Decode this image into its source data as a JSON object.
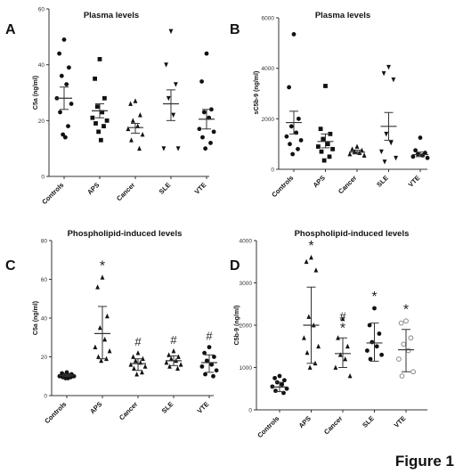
{
  "figure_label": "Figure 1",
  "chart_data": [
    {
      "type": "scatter",
      "panel": "A",
      "title": "Plasma levels",
      "ylabel": "C5a (ng/ml)",
      "xlabel": "",
      "ylim": [
        0,
        60
      ],
      "yticks": [
        "0",
        "20",
        "40",
        "60"
      ],
      "categories": [
        "Controls",
        "APS",
        "Cancer",
        "SLE",
        "VTE"
      ],
      "markers": [
        "circle",
        "square",
        "triangle",
        "triangle-down",
        "circle"
      ],
      "groups": [
        {
          "points": [
            49,
            44,
            39,
            36,
            33,
            28,
            26,
            23,
            18,
            15,
            14
          ],
          "mean": 28,
          "sem": [
            24,
            32
          ]
        },
        {
          "points": [
            42,
            35,
            28,
            25,
            23,
            21,
            20,
            19,
            18,
            16,
            13
          ],
          "mean": 23.5,
          "sem": [
            21,
            26
          ]
        },
        {
          "points": [
            27,
            26,
            22,
            20,
            18,
            17,
            15,
            13,
            10
          ],
          "mean": 17.5,
          "sem": [
            15.5,
            19
          ]
        },
        {
          "points": [
            52,
            40,
            33,
            28,
            22,
            10,
            10
          ],
          "mean": 26,
          "sem": [
            20,
            31
          ]
        },
        {
          "points": [
            44,
            34,
            24,
            23,
            21,
            17,
            16,
            14,
            12,
            10
          ],
          "mean": 20.5,
          "sem": [
            17,
            24
          ]
        }
      ],
      "annotations": [
        [
          "",
          "",
          "",
          "",
          ""
        ],
        [
          "",
          "",
          "",
          "",
          ""
        ]
      ]
    },
    {
      "type": "scatter",
      "panel": "B",
      "title": "Plasma levels",
      "ylabel": "sC5b-9 (ng/ml)",
      "xlabel": "",
      "ylim": [
        0,
        6000
      ],
      "yticks": [
        "0",
        "2000",
        "4000",
        "6000"
      ],
      "categories": [
        "Controls",
        "APS",
        "Cancer",
        "SLE",
        "VTE"
      ],
      "markers": [
        "circle",
        "square",
        "triangle",
        "triangle-down",
        "circle"
      ],
      "groups": [
        {
          "points": [
            5350,
            3250,
            2000,
            1700,
            1450,
            1300,
            1150,
            1000,
            800,
            600
          ],
          "mean": 1850,
          "sem": [
            1400,
            2300
          ]
        },
        {
          "points": [
            3300,
            1600,
            1400,
            1200,
            1000,
            900,
            800,
            700,
            500,
            350
          ],
          "mean": 1100,
          "sem": [
            850,
            1400
          ]
        },
        {
          "points": [
            900,
            800,
            750,
            700,
            650,
            600,
            550
          ],
          "mean": 680,
          "sem": [
            610,
            760
          ]
        },
        {
          "points": [
            4050,
            3800,
            3550,
            1400,
            1050,
            700,
            450,
            300
          ],
          "mean": 1700,
          "sem": [
            1150,
            2250
          ]
        },
        {
          "points": [
            1250,
            750,
            650,
            600,
            550,
            500,
            450
          ],
          "mean": 580,
          "sem": [
            500,
            680
          ]
        }
      ],
      "annotations": [
        [
          "",
          "",
          "",
          "",
          ""
        ],
        [
          "",
          "",
          "",
          "",
          ""
        ]
      ]
    },
    {
      "type": "scatter",
      "panel": "C",
      "title": "Phospholipid-induced levels",
      "ylabel": "C5a (ng/ml)",
      "xlabel": "",
      "ylim": [
        0,
        80
      ],
      "yticks": [
        "0",
        "20",
        "40",
        "60",
        "80"
      ],
      "categories": [
        "Controls",
        "APS",
        "Cancer",
        "SLE",
        "VTE"
      ],
      "markers": [
        "circle",
        "triangle",
        "triangle",
        "triangle",
        "circle"
      ],
      "groups": [
        {
          "points": [
            12,
            11.5,
            11,
            10.5,
            10.5,
            10,
            10,
            9.5,
            9.5,
            9,
            9
          ],
          "mean": 10.5,
          "sem": [
            9.8,
            11
          ]
        },
        {
          "points": [
            61,
            56,
            41,
            35,
            29,
            25,
            23,
            20,
            19,
            18
          ],
          "mean": 32,
          "sem": [
            19,
            46
          ]
        },
        {
          "points": [
            22,
            20,
            19,
            18,
            17,
            16,
            15,
            14,
            12,
            11
          ],
          "mean": 16.5,
          "sem": [
            13,
            19
          ]
        },
        {
          "points": [
            23,
            21,
            20,
            19,
            18,
            17,
            16,
            15,
            14
          ],
          "mean": 18,
          "sem": [
            15.5,
            20.5
          ]
        },
        {
          "points": [
            25,
            22,
            20,
            18,
            16,
            15,
            13,
            11,
            10
          ],
          "mean": 17,
          "sem": [
            12,
            21
          ]
        }
      ],
      "annotations": [
        [
          "",
          "*",
          "",
          "",
          ""
        ],
        [
          "",
          "",
          "#",
          "#",
          "#"
        ]
      ]
    },
    {
      "type": "scatter",
      "panel": "D",
      "title": "Phospholipid-induced  levels",
      "ylabel": "C5b-9 (ng/ml)",
      "xlabel": "",
      "ylim": [
        0,
        4000
      ],
      "yticks": [
        "0",
        "1000",
        "2000",
        "3000",
        "4000"
      ],
      "categories": [
        "Controls",
        "APS",
        "Cancer",
        "SLE",
        "VTE"
      ],
      "markers": [
        "circle",
        "triangle",
        "triangle",
        "circle",
        "circle-open"
      ],
      "groups": [
        {
          "points": [
            800,
            750,
            700,
            650,
            600,
            550,
            500,
            450,
            400
          ],
          "mean": 540,
          "sem": [
            430,
            650
          ]
        },
        {
          "points": [
            3600,
            3500,
            3300,
            2200,
            2000,
            1700,
            1500,
            1350,
            1100,
            1000
          ],
          "mean": 2000,
          "sem": [
            1100,
            2900
          ]
        },
        {
          "points": [
            2150,
            1700,
            1500,
            1300,
            1200,
            1000,
            800
          ],
          "mean": 1330,
          "sem": [
            1000,
            1700
          ]
        },
        {
          "points": [
            2400,
            2000,
            1800,
            1600,
            1500,
            1400,
            1300,
            1200
          ],
          "mean": 1580,
          "sem": [
            1150,
            2050
          ]
        },
        {
          "points": [
            2100,
            2050,
            1700,
            1550,
            1400,
            1200,
            900,
            800
          ],
          "mean": 1420,
          "sem": [
            900,
            1900
          ]
        }
      ],
      "annotations": [
        [
          "",
          "*",
          "#",
          "*",
          "*"
        ],
        [
          "",
          "",
          "*",
          "",
          ""
        ]
      ]
    }
  ]
}
